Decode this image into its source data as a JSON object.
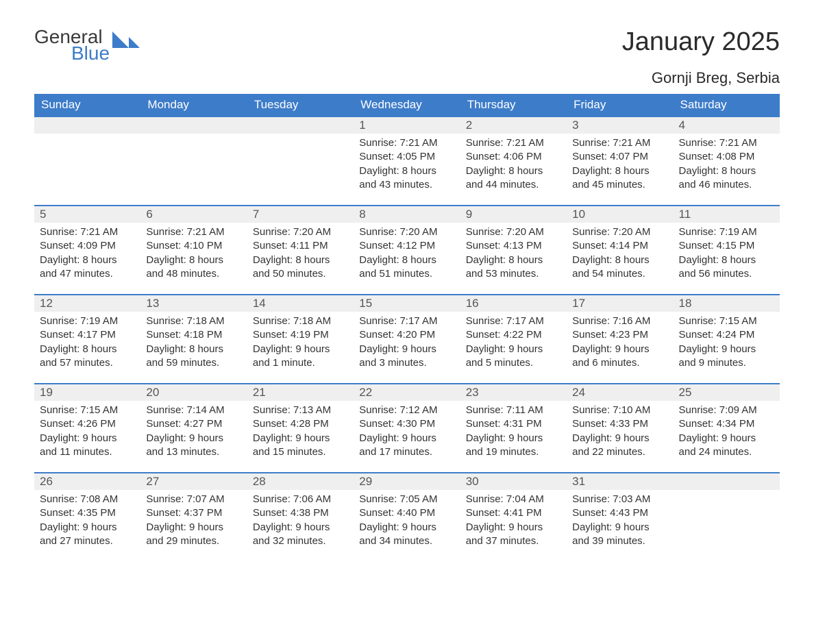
{
  "logo": {
    "general": "General",
    "blue": "Blue"
  },
  "header": {
    "title": "January 2025",
    "location": "Gornji Breg, Serbia"
  },
  "colors": {
    "header_bg": "#3d7cc9",
    "header_fg": "#ffffff",
    "daynum_bg": "#efefef",
    "row_border": "#3d7cc9",
    "text": "#333333",
    "title": "#2a2a2a"
  },
  "fonts": {
    "title_size_pt": 38,
    "location_size_pt": 22,
    "th_size_pt": 17,
    "cell_size_pt": 15
  },
  "calendar": {
    "day_labels": [
      "Sunday",
      "Monday",
      "Tuesday",
      "Wednesday",
      "Thursday",
      "Friday",
      "Saturday"
    ],
    "weeks": [
      [
        null,
        null,
        null,
        {
          "n": "1",
          "sr": "7:21 AM",
          "ss": "4:05 PM",
          "dl": "8 hours and 43 minutes."
        },
        {
          "n": "2",
          "sr": "7:21 AM",
          "ss": "4:06 PM",
          "dl": "8 hours and 44 minutes."
        },
        {
          "n": "3",
          "sr": "7:21 AM",
          "ss": "4:07 PM",
          "dl": "8 hours and 45 minutes."
        },
        {
          "n": "4",
          "sr": "7:21 AM",
          "ss": "4:08 PM",
          "dl": "8 hours and 46 minutes."
        }
      ],
      [
        {
          "n": "5",
          "sr": "7:21 AM",
          "ss": "4:09 PM",
          "dl": "8 hours and 47 minutes."
        },
        {
          "n": "6",
          "sr": "7:21 AM",
          "ss": "4:10 PM",
          "dl": "8 hours and 48 minutes."
        },
        {
          "n": "7",
          "sr": "7:20 AM",
          "ss": "4:11 PM",
          "dl": "8 hours and 50 minutes."
        },
        {
          "n": "8",
          "sr": "7:20 AM",
          "ss": "4:12 PM",
          "dl": "8 hours and 51 minutes."
        },
        {
          "n": "9",
          "sr": "7:20 AM",
          "ss": "4:13 PM",
          "dl": "8 hours and 53 minutes."
        },
        {
          "n": "10",
          "sr": "7:20 AM",
          "ss": "4:14 PM",
          "dl": "8 hours and 54 minutes."
        },
        {
          "n": "11",
          "sr": "7:19 AM",
          "ss": "4:15 PM",
          "dl": "8 hours and 56 minutes."
        }
      ],
      [
        {
          "n": "12",
          "sr": "7:19 AM",
          "ss": "4:17 PM",
          "dl": "8 hours and 57 minutes."
        },
        {
          "n": "13",
          "sr": "7:18 AM",
          "ss": "4:18 PM",
          "dl": "8 hours and 59 minutes."
        },
        {
          "n": "14",
          "sr": "7:18 AM",
          "ss": "4:19 PM",
          "dl": "9 hours and 1 minute."
        },
        {
          "n": "15",
          "sr": "7:17 AM",
          "ss": "4:20 PM",
          "dl": "9 hours and 3 minutes."
        },
        {
          "n": "16",
          "sr": "7:17 AM",
          "ss": "4:22 PM",
          "dl": "9 hours and 5 minutes."
        },
        {
          "n": "17",
          "sr": "7:16 AM",
          "ss": "4:23 PM",
          "dl": "9 hours and 6 minutes."
        },
        {
          "n": "18",
          "sr": "7:15 AM",
          "ss": "4:24 PM",
          "dl": "9 hours and 9 minutes."
        }
      ],
      [
        {
          "n": "19",
          "sr": "7:15 AM",
          "ss": "4:26 PM",
          "dl": "9 hours and 11 minutes."
        },
        {
          "n": "20",
          "sr": "7:14 AM",
          "ss": "4:27 PM",
          "dl": "9 hours and 13 minutes."
        },
        {
          "n": "21",
          "sr": "7:13 AM",
          "ss": "4:28 PM",
          "dl": "9 hours and 15 minutes."
        },
        {
          "n": "22",
          "sr": "7:12 AM",
          "ss": "4:30 PM",
          "dl": "9 hours and 17 minutes."
        },
        {
          "n": "23",
          "sr": "7:11 AM",
          "ss": "4:31 PM",
          "dl": "9 hours and 19 minutes."
        },
        {
          "n": "24",
          "sr": "7:10 AM",
          "ss": "4:33 PM",
          "dl": "9 hours and 22 minutes."
        },
        {
          "n": "25",
          "sr": "7:09 AM",
          "ss": "4:34 PM",
          "dl": "9 hours and 24 minutes."
        }
      ],
      [
        {
          "n": "26",
          "sr": "7:08 AM",
          "ss": "4:35 PM",
          "dl": "9 hours and 27 minutes."
        },
        {
          "n": "27",
          "sr": "7:07 AM",
          "ss": "4:37 PM",
          "dl": "9 hours and 29 minutes."
        },
        {
          "n": "28",
          "sr": "7:06 AM",
          "ss": "4:38 PM",
          "dl": "9 hours and 32 minutes."
        },
        {
          "n": "29",
          "sr": "7:05 AM",
          "ss": "4:40 PM",
          "dl": "9 hours and 34 minutes."
        },
        {
          "n": "30",
          "sr": "7:04 AM",
          "ss": "4:41 PM",
          "dl": "9 hours and 37 minutes."
        },
        {
          "n": "31",
          "sr": "7:03 AM",
          "ss": "4:43 PM",
          "dl": "9 hours and 39 minutes."
        },
        null
      ]
    ],
    "labels": {
      "sunrise": "Sunrise:",
      "sunset": "Sunset:",
      "daylight": "Daylight:"
    }
  }
}
